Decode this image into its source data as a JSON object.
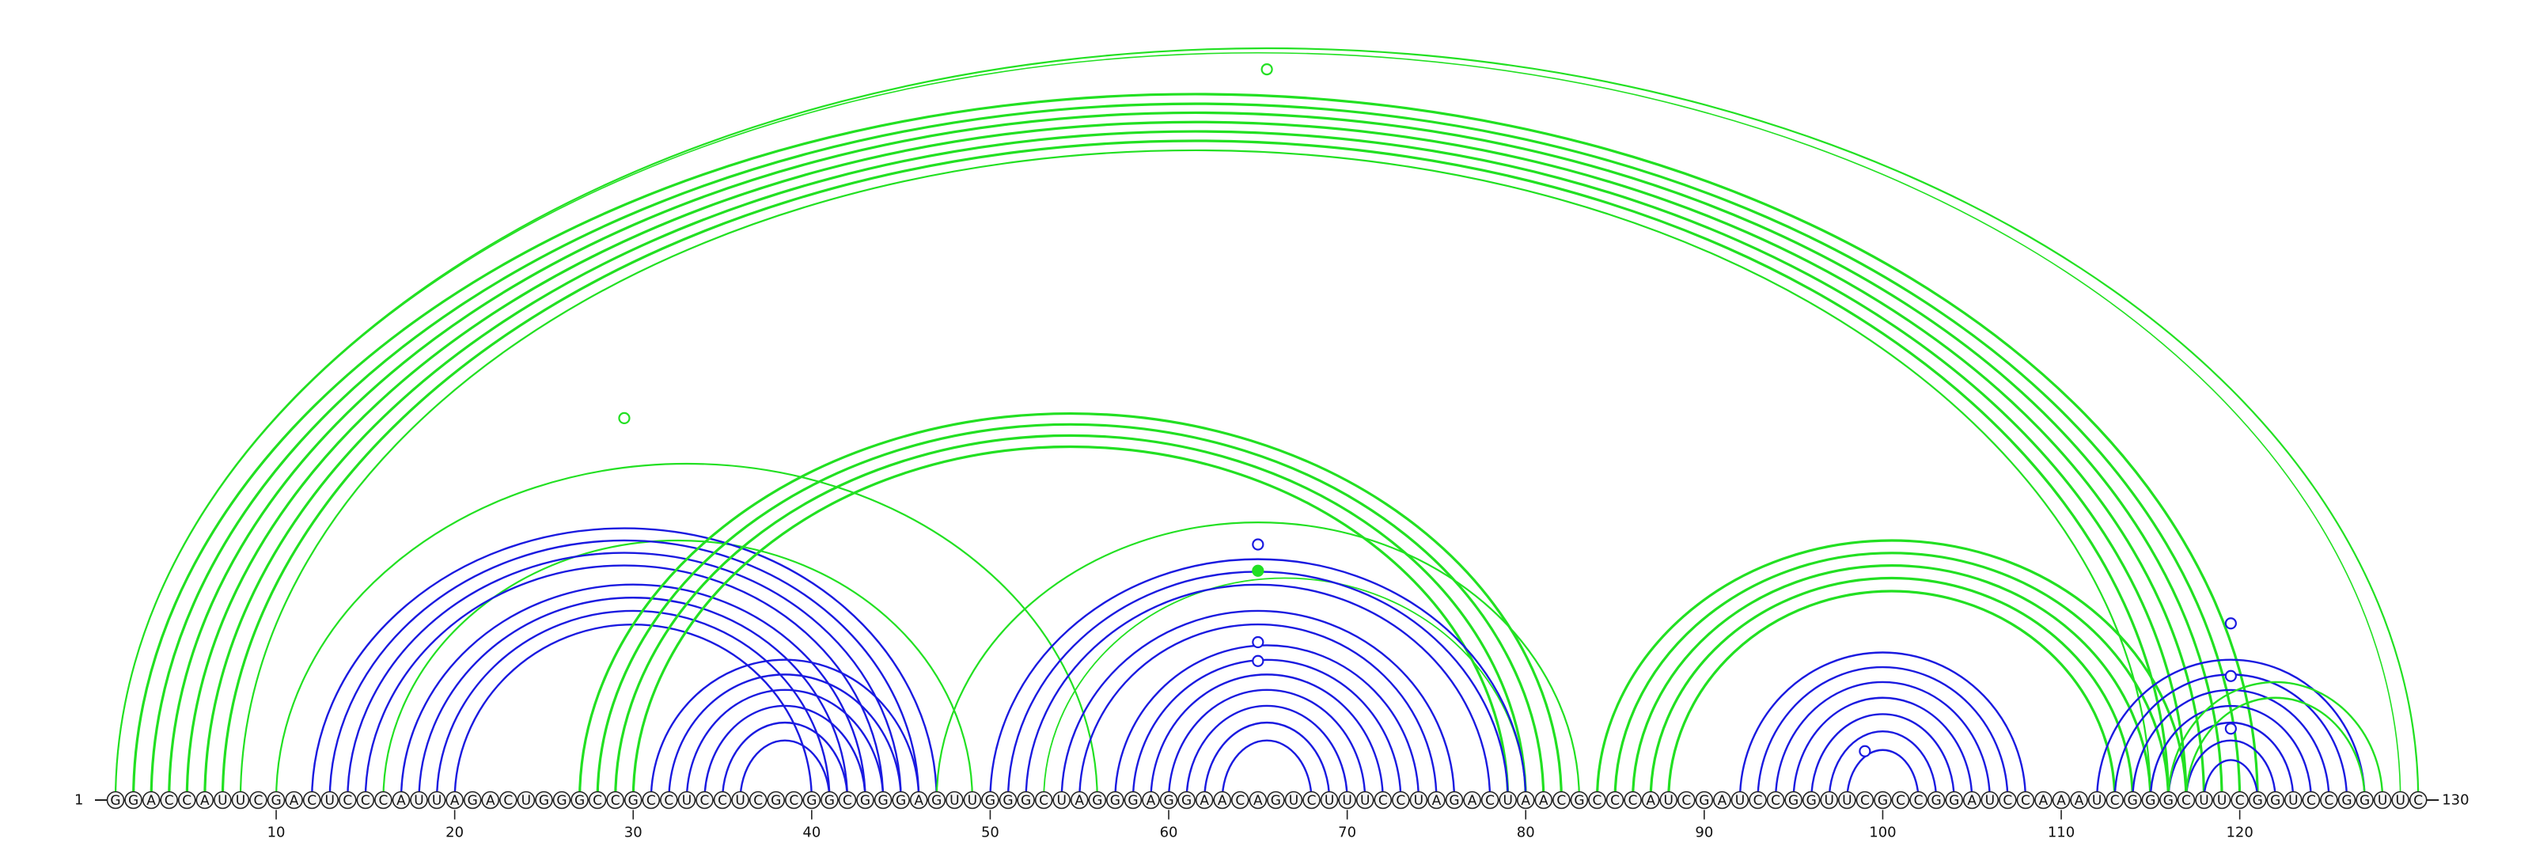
{
  "sequence": "GGACCAUUCGACUCCCAUUAGACUGGGCCGCCUCCUCGCGGCGGGAGUUGGGCUAGGGAGGAACAGUCUUUCCUAGACUAACGCCCAUCGAUCCGGUUCGCCGGAUCCAAAUCGGGCUUCGGUCCGGUUC",
  "labels": {
    "start_number": "1",
    "end_number": "130",
    "ticks": [
      "10",
      "20",
      "30",
      "40",
      "50",
      "60",
      "70",
      "80",
      "90",
      "100",
      "110",
      "120"
    ]
  },
  "colors": {
    "blue_pairs": "#1a1ae0",
    "green_pairs": "#22e022",
    "backbone": "#222222",
    "base_fill": "#f4f4f4"
  },
  "arc_groups": [
    {
      "color": "green",
      "width": 3.2,
      "pairs": [
        [
          2,
          121
        ],
        [
          3,
          120
        ],
        [
          4,
          119
        ],
        [
          5,
          118
        ],
        [
          6,
          117
        ],
        [
          7,
          116
        ]
      ]
    },
    {
      "color": "green",
      "width": 2.2,
      "pairs": [
        [
          1,
          130
        ],
        [
          8,
          115
        ]
      ]
    },
    {
      "color": "green",
      "width": 1.6,
      "pairs": [
        [
          1,
          129
        ]
      ]
    },
    {
      "color": "green",
      "width": 2.2,
      "pairs": [
        [
          10,
          56
        ]
      ]
    },
    {
      "color": "green",
      "width": 2.2,
      "pairs": [
        [
          16,
          49
        ]
      ]
    },
    {
      "color": "blue",
      "width": 2.4,
      "pairs": [
        [
          12,
          47
        ],
        [
          13,
          46
        ],
        [
          14,
          45
        ],
        [
          15,
          44
        ],
        [
          17,
          43
        ],
        [
          18,
          42
        ],
        [
          19,
          41
        ],
        [
          20,
          40
        ]
      ]
    },
    {
      "color": "green",
      "width": 3.2,
      "pairs": [
        [
          27,
          82
        ],
        [
          28,
          81
        ],
        [
          29,
          80
        ],
        [
          30,
          79
        ]
      ]
    },
    {
      "color": "blue",
      "width": 2.4,
      "pairs": [
        [
          31,
          46
        ],
        [
          32,
          45
        ],
        [
          33,
          44
        ],
        [
          34,
          43
        ],
        [
          35,
          42
        ],
        [
          36,
          41
        ]
      ]
    },
    {
      "color": "green",
      "width": 2.2,
      "pairs": [
        [
          47,
          83
        ]
      ]
    },
    {
      "color": "green",
      "width": 1.8,
      "pairs": [
        [
          53,
          80
        ]
      ]
    },
    {
      "color": "blue",
      "width": 2.4,
      "pairs": [
        [
          50,
          80
        ],
        [
          51,
          79
        ],
        [
          52,
          78
        ],
        [
          54,
          76
        ],
        [
          55,
          75
        ],
        [
          57,
          74
        ],
        [
          58,
          73
        ],
        [
          59,
          72
        ],
        [
          60,
          71
        ],
        [
          61,
          70
        ],
        [
          62,
          69
        ],
        [
          63,
          68
        ]
      ]
    },
    {
      "color": "green",
      "width": 3.2,
      "pairs": [
        [
          84,
          117
        ],
        [
          85,
          116
        ],
        [
          86,
          115
        ],
        [
          87,
          114
        ],
        [
          88,
          113
        ]
      ]
    },
    {
      "color": "blue",
      "width": 2.4,
      "pairs": [
        [
          92,
          108
        ],
        [
          93,
          107
        ],
        [
          94,
          106
        ],
        [
          95,
          105
        ],
        [
          96,
          104
        ],
        [
          97,
          103
        ],
        [
          98,
          102
        ]
      ]
    },
    {
      "color": "blue",
      "width": 2.4,
      "pairs": [
        [
          112,
          127
        ],
        [
          113,
          126
        ],
        [
          114,
          125
        ],
        [
          115,
          124
        ],
        [
          116,
          123
        ],
        [
          117,
          122
        ],
        [
          118,
          121
        ]
      ]
    },
    {
      "color": "green",
      "width": 2.4,
      "pairs": [
        [
          116,
          128
        ],
        [
          117,
          127
        ]
      ]
    }
  ],
  "markers": [
    {
      "pos": 65.5,
      "level": 0.972,
      "color": "green",
      "filled": false
    },
    {
      "pos": 29.5,
      "level": 0.508,
      "color": "green",
      "filled": false
    },
    {
      "pos": 65,
      "level": 0.34,
      "color": "blue",
      "filled": false
    },
    {
      "pos": 65,
      "level": 0.305,
      "color": "green",
      "filled": true
    },
    {
      "pos": 65,
      "level": 0.21,
      "color": "blue",
      "filled": false
    },
    {
      "pos": 65,
      "level": 0.185,
      "color": "blue",
      "filled": false
    },
    {
      "pos": 99,
      "level": 0.065,
      "color": "blue",
      "filled": false
    },
    {
      "pos": 119.5,
      "level": 0.235,
      "color": "blue",
      "filled": false
    },
    {
      "pos": 119.5,
      "level": 0.165,
      "color": "blue",
      "filled": false
    },
    {
      "pos": 119.5,
      "level": 0.095,
      "color": "blue",
      "filled": false
    }
  ]
}
